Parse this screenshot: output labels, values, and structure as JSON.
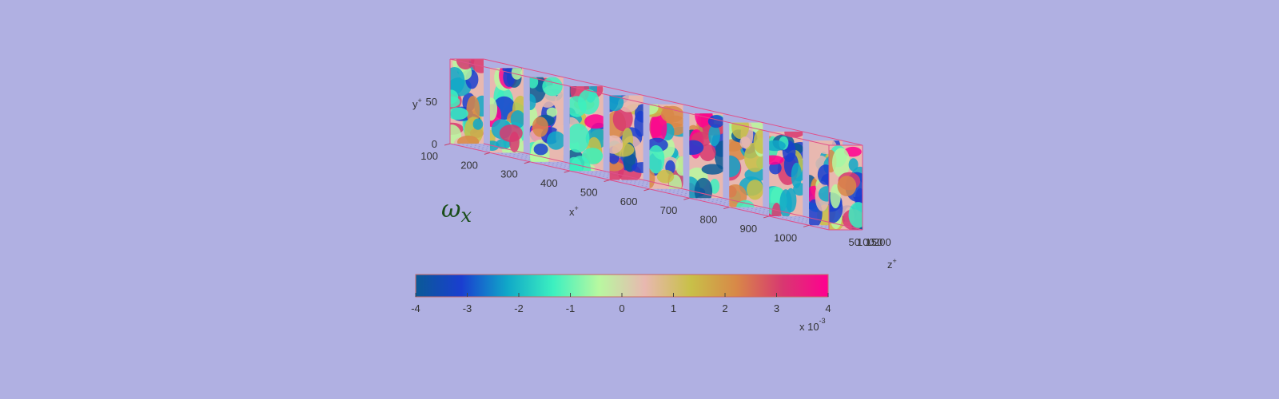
{
  "chart_data": {
    "type": "heatmap",
    "title": "",
    "field_label": "ωx",
    "field_symbol": "ω",
    "field_subscript": "x",
    "xlabel": "x",
    "xlabel_sup": "+",
    "ylabel": "y",
    "ylabel_sup": "+",
    "zlabel": "z",
    "zlabel_sup": "+",
    "x_ticks": [
      "100",
      "200",
      "300",
      "400",
      "500",
      "600",
      "700",
      "800",
      "900",
      "1000"
    ],
    "y_ticks": [
      "0",
      "50"
    ],
    "z_ticks": [
      "50",
      "100",
      "150",
      "200"
    ],
    "xlim": [
      100,
      1050
    ],
    "ylim": [
      0,
      100
    ],
    "zlim": [
      0,
      200
    ],
    "slices_x": [
      100,
      200,
      300,
      400,
      500,
      600,
      700,
      800,
      900,
      1000,
      1050
    ],
    "colorbar": {
      "ticks": [
        "-4",
        "-3",
        "-2",
        "-1",
        "0",
        "1",
        "2",
        "3",
        "4"
      ],
      "range": [
        -4,
        4
      ],
      "multiplier_base": "x 10",
      "multiplier_exp": "-3",
      "colors": [
        "#0a5a96",
        "#1a3ed0",
        "#10a8c8",
        "#3cf0c0",
        "#b8f8a0",
        "#e8b8b0",
        "#c8c048",
        "#d88848",
        "#d83870",
        "#ff0090"
      ]
    }
  }
}
